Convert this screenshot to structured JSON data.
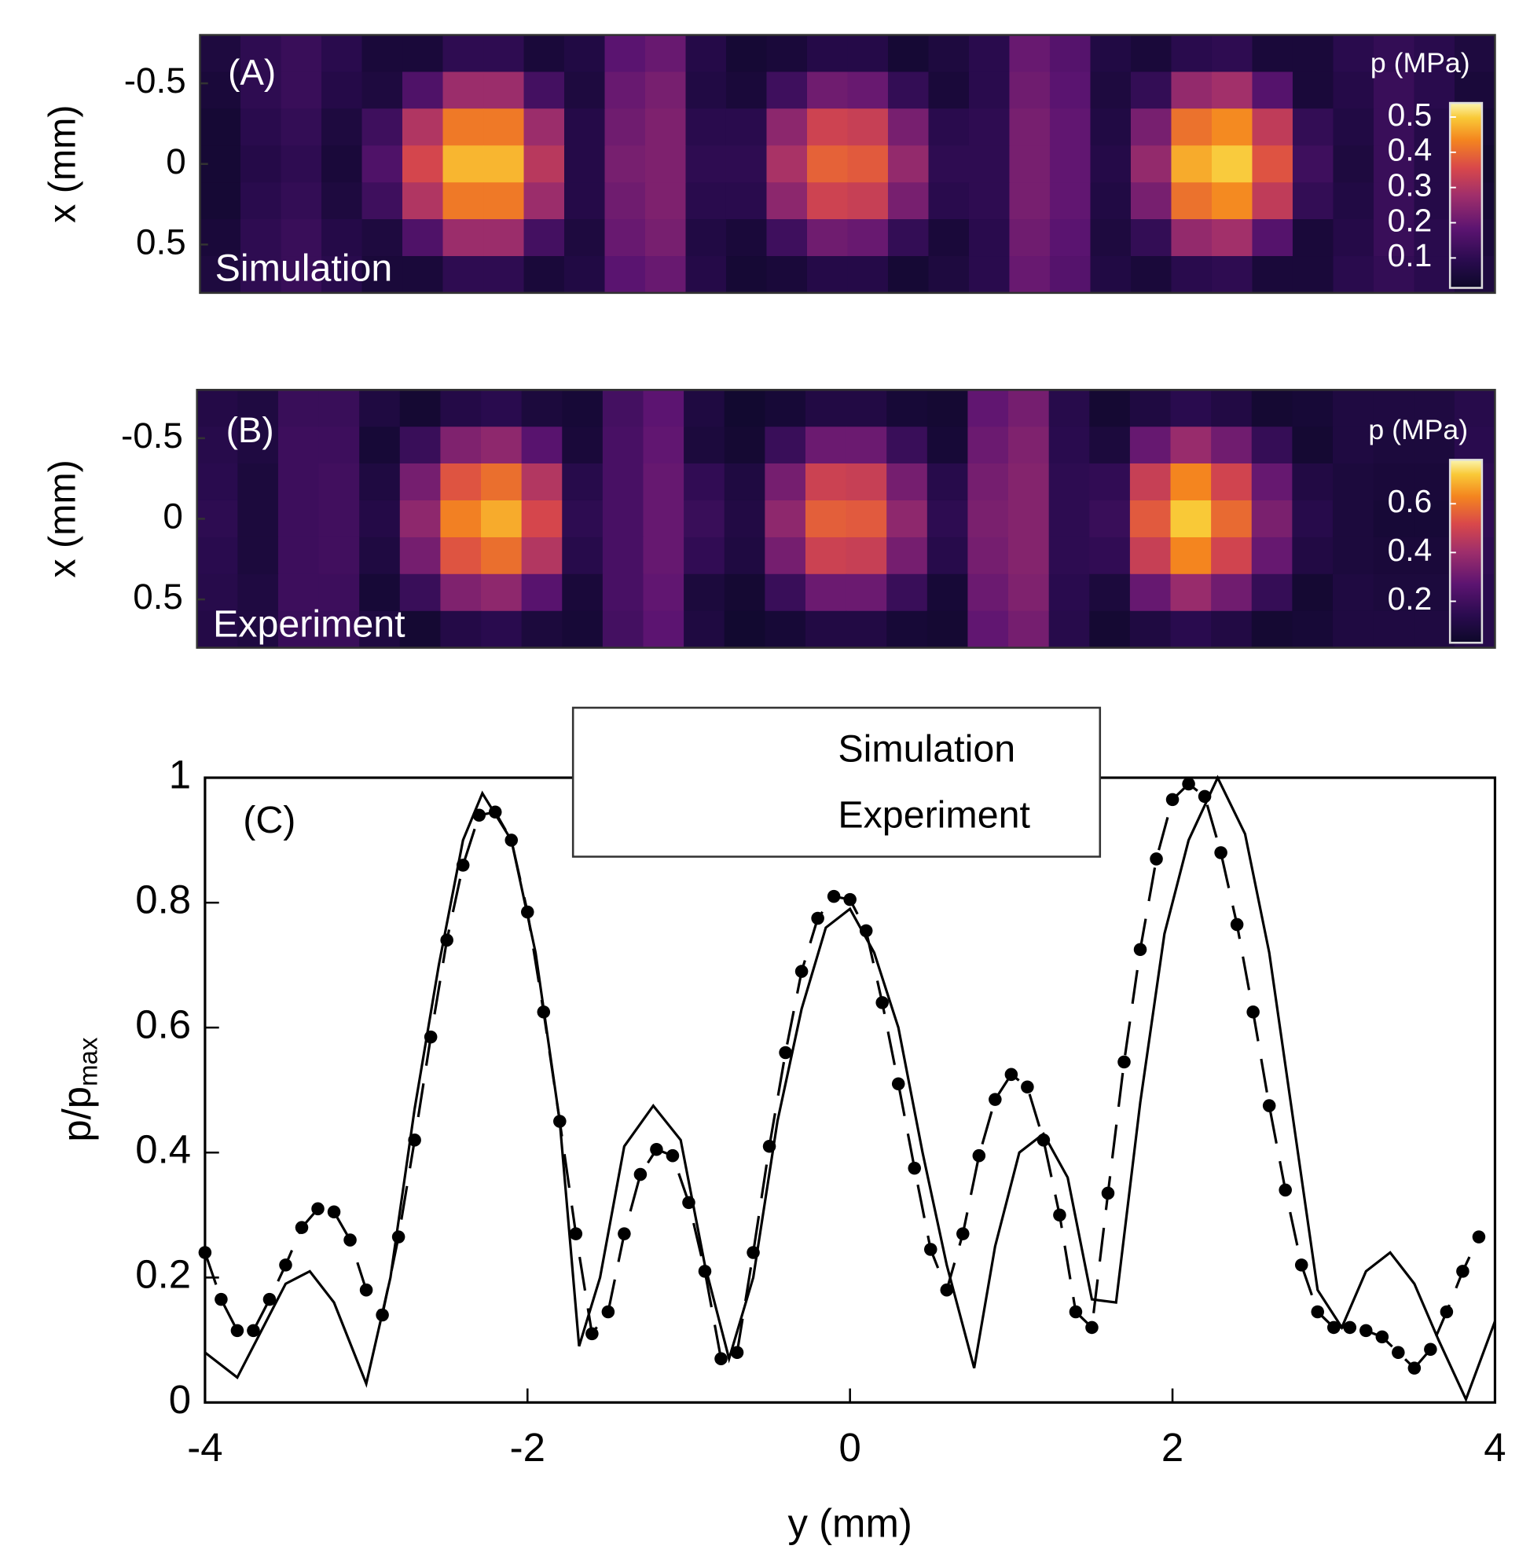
{
  "chart_data": [
    {
      "type": "heatmap",
      "label": "(A)",
      "annotation": "Simulation",
      "ylabel": "x (mm)",
      "xlim": [
        -4,
        4
      ],
      "ylim": [
        -0.8,
        0.8
      ],
      "yticks": [
        -0.5,
        0,
        0.5
      ],
      "x": [
        -3.875,
        -3.625,
        -3.375,
        -3.125,
        -2.875,
        -2.625,
        -2.375,
        -2.125,
        -1.875,
        -1.625,
        -1.375,
        -1.125,
        -0.875,
        -0.625,
        -0.375,
        -0.125,
        0.125,
        0.375,
        0.625,
        0.875,
        1.125,
        1.375,
        1.625,
        1.875,
        2.125,
        2.375,
        2.625,
        2.875,
        3.125,
        3.375,
        3.625,
        3.875
      ],
      "y": [
        -0.686,
        -0.457,
        -0.229,
        0,
        0.229,
        0.457,
        0.686
      ],
      "z": [
        [
          0.06,
          0.1,
          0.12,
          0.09,
          0.05,
          0.05,
          0.1,
          0.1,
          0.05,
          0.07,
          0.18,
          0.2,
          0.08,
          0.04,
          0.05,
          0.08,
          0.08,
          0.04,
          0.06,
          0.09,
          0.2,
          0.17,
          0.07,
          0.05,
          0.09,
          0.1,
          0.05,
          0.05,
          0.09,
          0.11,
          0.09,
          0.06
        ],
        [
          0.05,
          0.1,
          0.12,
          0.08,
          0.06,
          0.16,
          0.27,
          0.27,
          0.14,
          0.06,
          0.2,
          0.22,
          0.07,
          0.05,
          0.13,
          0.21,
          0.2,
          0.11,
          0.05,
          0.09,
          0.21,
          0.18,
          0.06,
          0.11,
          0.26,
          0.28,
          0.17,
          0.05,
          0.08,
          0.12,
          0.09,
          0.05
        ],
        [
          0.04,
          0.09,
          0.11,
          0.06,
          0.13,
          0.3,
          0.42,
          0.42,
          0.27,
          0.08,
          0.21,
          0.23,
          0.09,
          0.09,
          0.25,
          0.34,
          0.33,
          0.22,
          0.09,
          0.1,
          0.22,
          0.19,
          0.07,
          0.22,
          0.41,
          0.44,
          0.32,
          0.11,
          0.07,
          0.12,
          0.08,
          0.04
        ],
        [
          0.04,
          0.08,
          0.1,
          0.05,
          0.16,
          0.35,
          0.48,
          0.48,
          0.31,
          0.08,
          0.22,
          0.23,
          0.1,
          0.1,
          0.29,
          0.39,
          0.38,
          0.26,
          0.1,
          0.1,
          0.22,
          0.19,
          0.08,
          0.26,
          0.47,
          0.5,
          0.37,
          0.13,
          0.06,
          0.12,
          0.08,
          0.03
        ],
        [
          0.04,
          0.09,
          0.11,
          0.06,
          0.13,
          0.3,
          0.42,
          0.42,
          0.27,
          0.08,
          0.21,
          0.23,
          0.09,
          0.09,
          0.25,
          0.34,
          0.33,
          0.22,
          0.09,
          0.1,
          0.22,
          0.19,
          0.07,
          0.22,
          0.41,
          0.44,
          0.32,
          0.11,
          0.07,
          0.12,
          0.08,
          0.04
        ],
        [
          0.05,
          0.1,
          0.12,
          0.08,
          0.06,
          0.16,
          0.27,
          0.27,
          0.14,
          0.06,
          0.2,
          0.22,
          0.07,
          0.05,
          0.13,
          0.21,
          0.2,
          0.11,
          0.05,
          0.09,
          0.21,
          0.18,
          0.06,
          0.11,
          0.26,
          0.28,
          0.17,
          0.05,
          0.08,
          0.12,
          0.09,
          0.05
        ],
        [
          0.06,
          0.1,
          0.12,
          0.09,
          0.05,
          0.05,
          0.1,
          0.1,
          0.05,
          0.07,
          0.18,
          0.2,
          0.08,
          0.04,
          0.05,
          0.08,
          0.08,
          0.04,
          0.06,
          0.09,
          0.2,
          0.17,
          0.07,
          0.05,
          0.09,
          0.1,
          0.05,
          0.05,
          0.09,
          0.11,
          0.09,
          0.06
        ]
      ],
      "colorbar": {
        "title": "p (MPa)",
        "clim": [
          0.015,
          0.54
        ],
        "ticks": [
          0.1,
          0.2,
          0.3,
          0.4,
          0.5
        ]
      },
      "colormap": [
        [
          0,
          "#0d0829"
        ],
        [
          0.15,
          "#2a0b4f"
        ],
        [
          0.32,
          "#5c1471"
        ],
        [
          0.5,
          "#a02f6b"
        ],
        [
          0.65,
          "#d9484a"
        ],
        [
          0.8,
          "#f4851f"
        ],
        [
          0.92,
          "#f9c937"
        ],
        [
          1,
          "#fbf5b0"
        ]
      ]
    },
    {
      "type": "heatmap",
      "label": "(B)",
      "annotation": "Experiment",
      "ylabel": "x (mm)",
      "xlim": [
        -4,
        4
      ],
      "ylim": [
        -0.8,
        0.8
      ],
      "yticks": [
        -0.5,
        0,
        0.5
      ],
      "x": [
        -3.875,
        -3.625,
        -3.375,
        -3.125,
        -2.875,
        -2.625,
        -2.375,
        -2.125,
        -1.875,
        -1.625,
        -1.375,
        -1.125,
        -0.875,
        -0.625,
        -0.375,
        -0.125,
        0.125,
        0.375,
        0.625,
        0.875,
        1.125,
        1.375,
        1.625,
        1.875,
        2.125,
        2.375,
        2.625,
        2.875,
        3.125,
        3.375,
        3.625,
        3.875
      ],
      "y": [
        -0.686,
        -0.457,
        -0.229,
        0,
        0.229,
        0.457,
        0.686
      ],
      "z": [
        [
          0.12,
          0.1,
          0.18,
          0.18,
          0.1,
          0.06,
          0.12,
          0.14,
          0.09,
          0.07,
          0.21,
          0.27,
          0.1,
          0.05,
          0.07,
          0.11,
          0.11,
          0.07,
          0.06,
          0.28,
          0.32,
          0.13,
          0.06,
          0.1,
          0.14,
          0.11,
          0.06,
          0.07,
          0.1,
          0.1,
          0.1,
          0.13
        ],
        [
          0.13,
          0.1,
          0.19,
          0.19,
          0.07,
          0.18,
          0.34,
          0.37,
          0.26,
          0.08,
          0.22,
          0.28,
          0.09,
          0.06,
          0.18,
          0.3,
          0.3,
          0.18,
          0.07,
          0.3,
          0.34,
          0.14,
          0.09,
          0.29,
          0.39,
          0.31,
          0.17,
          0.06,
          0.1,
          0.09,
          0.09,
          0.14
        ],
        [
          0.14,
          0.09,
          0.19,
          0.2,
          0.1,
          0.32,
          0.54,
          0.59,
          0.44,
          0.13,
          0.22,
          0.29,
          0.16,
          0.1,
          0.32,
          0.49,
          0.48,
          0.32,
          0.13,
          0.32,
          0.35,
          0.15,
          0.16,
          0.48,
          0.63,
          0.5,
          0.29,
          0.11,
          0.09,
          0.08,
          0.08,
          0.15
        ],
        [
          0.15,
          0.09,
          0.19,
          0.2,
          0.12,
          0.37,
          0.62,
          0.68,
          0.51,
          0.15,
          0.22,
          0.29,
          0.18,
          0.11,
          0.37,
          0.56,
          0.55,
          0.37,
          0.15,
          0.33,
          0.35,
          0.15,
          0.18,
          0.55,
          0.72,
          0.58,
          0.33,
          0.13,
          0.09,
          0.07,
          0.07,
          0.16
        ],
        [
          0.14,
          0.09,
          0.19,
          0.2,
          0.1,
          0.32,
          0.54,
          0.59,
          0.44,
          0.13,
          0.22,
          0.29,
          0.16,
          0.1,
          0.32,
          0.49,
          0.48,
          0.32,
          0.13,
          0.32,
          0.35,
          0.15,
          0.16,
          0.48,
          0.63,
          0.5,
          0.29,
          0.11,
          0.09,
          0.08,
          0.08,
          0.15
        ],
        [
          0.13,
          0.1,
          0.19,
          0.19,
          0.07,
          0.18,
          0.34,
          0.37,
          0.26,
          0.08,
          0.22,
          0.28,
          0.09,
          0.06,
          0.18,
          0.3,
          0.3,
          0.18,
          0.07,
          0.3,
          0.34,
          0.14,
          0.09,
          0.29,
          0.39,
          0.31,
          0.17,
          0.06,
          0.1,
          0.09,
          0.09,
          0.14
        ],
        [
          0.12,
          0.1,
          0.18,
          0.18,
          0.1,
          0.06,
          0.12,
          0.14,
          0.09,
          0.07,
          0.21,
          0.27,
          0.1,
          0.05,
          0.07,
          0.11,
          0.11,
          0.07,
          0.06,
          0.28,
          0.32,
          0.13,
          0.06,
          0.1,
          0.14,
          0.11,
          0.06,
          0.07,
          0.1,
          0.1,
          0.1,
          0.13
        ]
      ],
      "colorbar": {
        "title": "p (MPa)",
        "clim": [
          0.03,
          0.78
        ],
        "ticks": [
          0.2,
          0.4,
          0.6
        ]
      },
      "colormap": [
        [
          0,
          "#0d0829"
        ],
        [
          0.15,
          "#2a0b4f"
        ],
        [
          0.32,
          "#5c1471"
        ],
        [
          0.5,
          "#a02f6b"
        ],
        [
          0.65,
          "#d9484a"
        ],
        [
          0.8,
          "#f4851f"
        ],
        [
          0.92,
          "#f9c937"
        ],
        [
          1,
          "#fbf5b0"
        ]
      ]
    },
    {
      "type": "line",
      "label": "(C)",
      "xlabel": "y (mm)",
      "ylabel": "p/p",
      "ylabel_subscript": "max",
      "xlim": [
        -4,
        4
      ],
      "ylim": [
        0,
        1
      ],
      "xticks": [
        -4,
        -2,
        0,
        2,
        4
      ],
      "yticks": [
        0,
        0.2,
        0.4,
        0.6,
        0.8,
        1
      ],
      "series": [
        {
          "name": "Simulation",
          "color": "#000000",
          "style": "solid",
          "x": [
            -4,
            -3.8,
            -3.5,
            -3.35,
            -3.2,
            -3.0,
            -2.85,
            -2.7,
            -2.55,
            -2.4,
            -2.28,
            -2.1,
            -1.95,
            -1.8,
            -1.68,
            -1.55,
            -1.4,
            -1.22,
            -1.05,
            -0.9,
            -0.75,
            -0.6,
            -0.45,
            -0.3,
            -0.15,
            0,
            0.15,
            0.3,
            0.45,
            0.6,
            0.77,
            0.9,
            1.05,
            1.2,
            1.35,
            1.5,
            1.65,
            1.8,
            1.95,
            2.1,
            2.28,
            2.45,
            2.6,
            2.75,
            2.9,
            3.05,
            3.2,
            3.35,
            3.5,
            3.65,
            3.82,
            4
          ],
          "values": [
            0.08,
            0.04,
            0.19,
            0.21,
            0.16,
            0.03,
            0.2,
            0.47,
            0.7,
            0.9,
            0.975,
            0.9,
            0.72,
            0.45,
            0.09,
            0.2,
            0.41,
            0.475,
            0.42,
            0.22,
            0.07,
            0.2,
            0.45,
            0.63,
            0.76,
            0.79,
            0.72,
            0.6,
            0.4,
            0.22,
            0.055,
            0.25,
            0.4,
            0.43,
            0.36,
            0.165,
            0.16,
            0.48,
            0.75,
            0.9,
            1.0,
            0.91,
            0.72,
            0.45,
            0.18,
            0.12,
            0.21,
            0.24,
            0.19,
            0.1,
            0.005,
            0.13
          ]
        },
        {
          "name": "Experiment",
          "color": "#000000",
          "style": "dashed",
          "marker": "circle",
          "x": [
            -4,
            -3.9,
            -3.8,
            -3.7,
            -3.6,
            -3.5,
            -3.4,
            -3.3,
            -3.2,
            -3.1,
            -3.0,
            -2.9,
            -2.8,
            -2.7,
            -2.6,
            -2.5,
            -2.4,
            -2.3,
            -2.2,
            -2.1,
            -2.0,
            -1.9,
            -1.8,
            -1.7,
            -1.6,
            -1.5,
            -1.4,
            -1.3,
            -1.2,
            -1.1,
            -1.0,
            -0.9,
            -0.8,
            -0.7,
            -0.6,
            -0.5,
            -0.4,
            -0.3,
            -0.2,
            -0.1,
            0,
            0.1,
            0.2,
            0.3,
            0.4,
            0.5,
            0.6,
            0.7,
            0.8,
            0.9,
            1.0,
            1.1,
            1.2,
            1.3,
            1.4,
            1.5,
            1.6,
            1.7,
            1.8,
            1.9,
            2.0,
            2.1,
            2.2,
            2.3,
            2.4,
            2.5,
            2.6,
            2.7,
            2.8,
            2.9,
            3.0,
            3.1,
            3.2,
            3.3,
            3.4,
            3.5,
            3.6,
            3.7,
            3.8,
            3.9
          ],
          "values": [
            0.24,
            0.165,
            0.115,
            0.115,
            0.165,
            0.22,
            0.28,
            0.31,
            0.305,
            0.26,
            0.18,
            0.14,
            0.265,
            0.42,
            0.585,
            0.74,
            0.86,
            0.94,
            0.945,
            0.9,
            0.785,
            0.625,
            0.45,
            0.27,
            0.11,
            0.145,
            0.27,
            0.365,
            0.405,
            0.395,
            0.32,
            0.21,
            0.07,
            0.08,
            0.24,
            0.41,
            0.56,
            0.69,
            0.775,
            0.81,
            0.805,
            0.755,
            0.64,
            0.51,
            0.375,
            0.245,
            0.18,
            0.27,
            0.395,
            0.485,
            0.525,
            0.505,
            0.42,
            0.3,
            0.145,
            0.12,
            0.335,
            0.545,
            0.725,
            0.87,
            0.965,
            0.99,
            0.97,
            0.88,
            0.765,
            0.625,
            0.475,
            0.34,
            0.22,
            0.145,
            0.12,
            0.12,
            0.115,
            0.105,
            0.08,
            0.055,
            0.085,
            0.145,
            0.21,
            0.265
          ]
        }
      ]
    }
  ]
}
